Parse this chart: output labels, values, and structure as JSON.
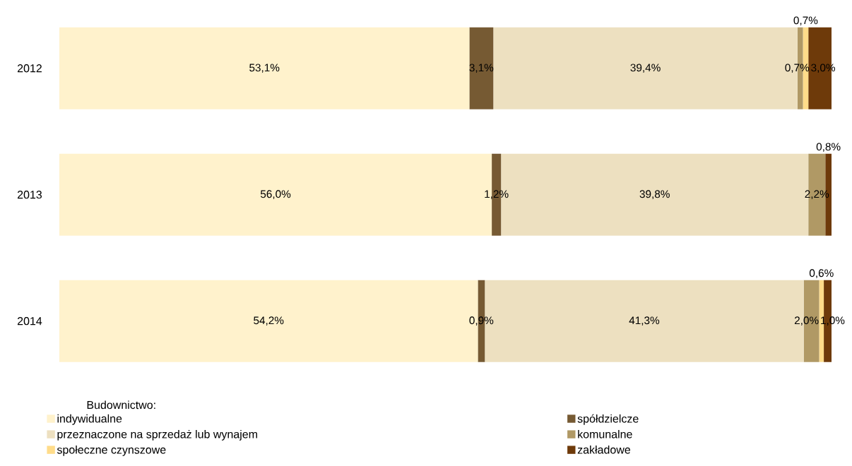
{
  "chart_data": {
    "type": "bar",
    "orientation": "horizontal",
    "stacked": true,
    "categories": [
      "2012",
      "2013",
      "2014"
    ],
    "legend_title": "Budownictwo:",
    "legend": "bottom",
    "series": [
      {
        "name": "indywidualne",
        "color": "#fff2cc",
        "values": [
          53.1,
          56.0,
          54.2
        ],
        "value_labels": [
          "53,1%",
          "56,0%",
          "54,2%"
        ]
      },
      {
        "name": "spółdzielcze",
        "color": "#765a33",
        "values": [
          3.1,
          1.2,
          0.9
        ],
        "value_labels": [
          "3,1%",
          "1,2%",
          "0,9%"
        ]
      },
      {
        "name": "przeznaczone na sprzedaż lub wynajem",
        "color": "#ede0c0",
        "values": [
          39.4,
          39.8,
          41.3
        ],
        "value_labels": [
          "39,4%",
          "39,8%",
          "41,3%"
        ]
      },
      {
        "name": "komunalne",
        "color": "#b09965",
        "values": [
          0.7,
          2.2,
          2.0
        ],
        "value_labels": [
          "0,7%",
          "2,2%",
          "2,0%"
        ]
      },
      {
        "name": "społeczne czynszowe",
        "color": "#ffdc8a",
        "values": [
          0.7,
          null,
          0.6
        ],
        "value_labels": [
          "0,7%",
          null,
          "0,6%"
        ]
      },
      {
        "name": "zakładowe",
        "color": "#6e3a0a",
        "values": [
          3.0,
          0.8,
          1.0
        ],
        "value_labels": [
          "3,0%",
          "0,8%",
          "1,0%"
        ]
      }
    ]
  }
}
